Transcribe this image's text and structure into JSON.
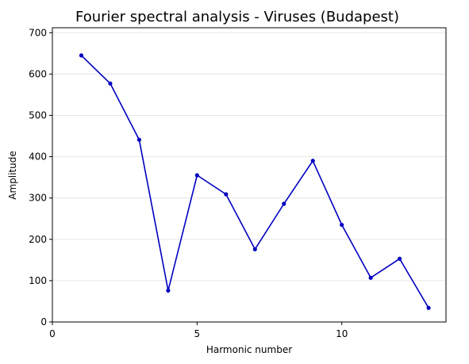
{
  "chart_data": {
    "type": "line",
    "title": "Fourier spectral analysis - Viruses (Budapest)",
    "xlabel": "Harmonic number",
    "ylabel": "Amplitude",
    "xlim": [
      0,
      13.6
    ],
    "ylim": [
      0,
      712
    ],
    "xticks": [
      0,
      5,
      10
    ],
    "yticks": [
      0,
      100,
      200,
      300,
      400,
      500,
      600,
      700
    ],
    "grid": "horizontal",
    "series": [
      {
        "color": "#0000c0",
        "x": [
          1,
          2,
          3,
          4,
          5,
          6,
          7,
          8,
          9,
          10,
          11,
          12,
          13
        ],
        "y": [
          645,
          577,
          441,
          76,
          355,
          309,
          176,
          286,
          390,
          235,
          107,
          153,
          34
        ]
      }
    ]
  }
}
